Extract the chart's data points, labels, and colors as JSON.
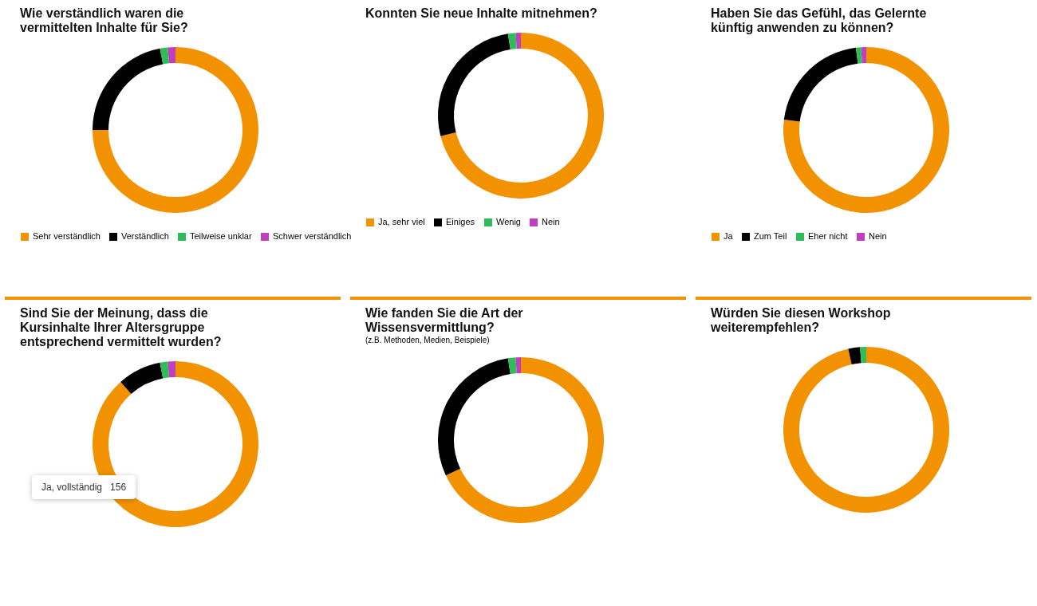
{
  "chart_data": [
    {
      "type": "donut",
      "title": "Wie verständlich waren die vermittelten Inhalte für Sie?",
      "categories": [
        "Sehr verständlich",
        "Verständlich",
        "Teilweise unklar",
        "Schwer verständlich"
      ],
      "values": [
        75,
        22,
        1.5,
        1.5
      ],
      "colors": [
        "#f39200",
        "#000000",
        "#2ebd59",
        "#c03ec0"
      ],
      "legend": "bottom"
    },
    {
      "type": "donut",
      "title": "Konnten Sie neue Inhalte mitnehmen?",
      "categories": [
        "Ja, sehr viel",
        "Einiges",
        "Wenig",
        "Nein"
      ],
      "values": [
        71,
        26.5,
        1.5,
        1
      ],
      "colors": [
        "#f39200",
        "#000000",
        "#2ebd59",
        "#c03ec0"
      ],
      "legend": "bottom"
    },
    {
      "type": "donut",
      "title": "Haben Sie das Gefühl, das Gelernte künftig anwenden zu können?",
      "categories": [
        "Ja",
        "Zum Teil",
        "Eher nicht",
        "Nein"
      ],
      "values": [
        77,
        21,
        1,
        1
      ],
      "colors": [
        "#f39200",
        "#000000",
        "#2ebd59",
        "#c03ec0"
      ],
      "legend": "bottom"
    },
    {
      "type": "donut",
      "title": "Sind Sie der Meinung, dass die Kursinhalte Ihrer Altersgruppe entsprechend vermittelt wurden?",
      "categories": [
        null,
        null,
        null,
        null
      ],
      "values": [
        88.5,
        8.5,
        1.5,
        1.5
      ],
      "colors": [
        "#f39200",
        "#000000",
        "#2ebd59",
        "#c03ec0"
      ],
      "annotations": [
        "Ja, vollständig   156"
      ]
    },
    {
      "type": "donut",
      "title": "Wie fanden Sie die Art der Wissensvermittlung?",
      "subtitle": "(z.B. Methoden, Medien, Beispiele)",
      "categories": [
        null,
        null,
        null,
        null
      ],
      "values": [
        68,
        29.5,
        1.5,
        1
      ],
      "colors": [
        "#f39200",
        "#000000",
        "#2ebd59",
        "#c03ec0"
      ]
    },
    {
      "type": "donut",
      "title": "Würden Sie diesen Workshop weiterempfehlen?",
      "categories": [
        null,
        null,
        null
      ],
      "values": [
        96.5,
        2.3,
        1.2
      ],
      "colors": [
        "#f39200",
        "#000000",
        "#2ebd59"
      ]
    }
  ]
}
